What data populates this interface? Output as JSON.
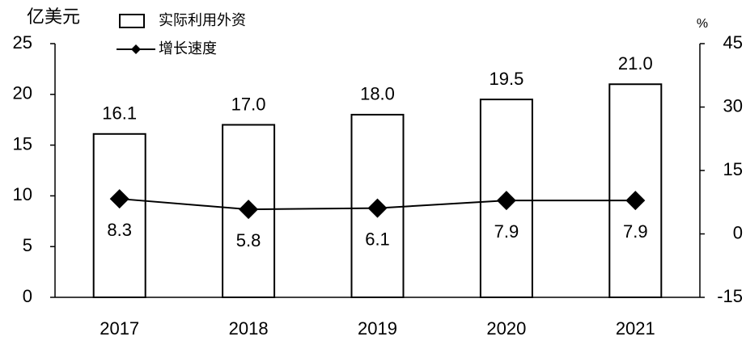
{
  "chart_data": {
    "type": "bar",
    "y_label": "亿美元",
    "y2_label": "%",
    "categories": [
      "2017",
      "2018",
      "2019",
      "2020",
      "2021"
    ],
    "series": [
      {
        "name": "实际利用外资",
        "type": "bar",
        "color": "#000000",
        "values": [
          16.1,
          17.0,
          18.0,
          19.5,
          21.0
        ],
        "value_labels": [
          "16.1",
          "17.0",
          "18.0",
          "19.5",
          "21.0"
        ]
      },
      {
        "name": "增长速度",
        "type": "line",
        "axis": "y2",
        "color": "#000000",
        "values": [
          8.3,
          5.8,
          6.1,
          7.9,
          7.9
        ]
      }
    ],
    "ylim": [
      0,
      25
    ],
    "yticks": [
      0,
      5,
      10,
      15,
      20,
      25
    ],
    "y2lim": [
      -15,
      45
    ],
    "y2ticks": [
      -15,
      0,
      15,
      30,
      45
    ]
  }
}
